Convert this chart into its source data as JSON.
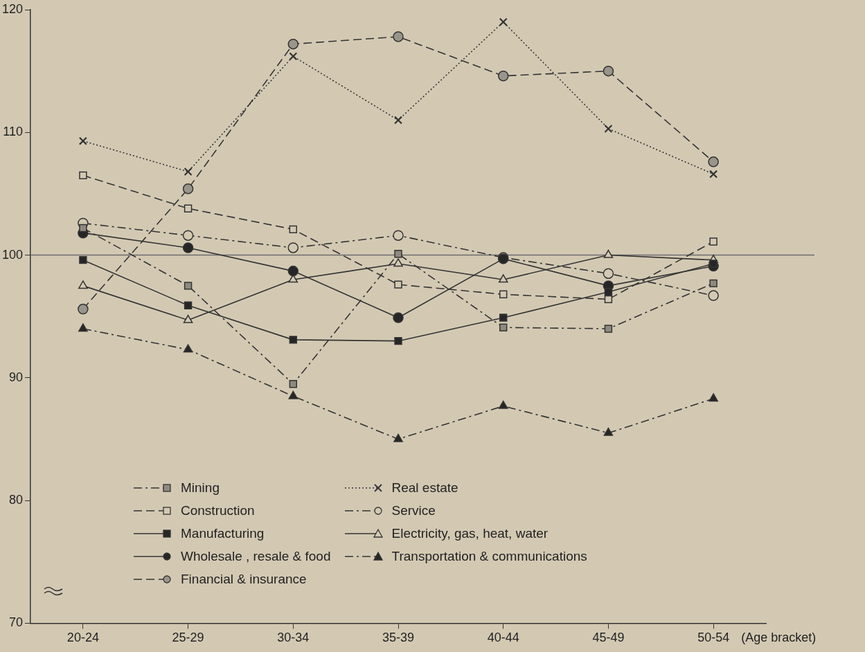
{
  "chart_data": {
    "type": "line",
    "xlabel": "(Age bracket)",
    "categories": [
      "20-24",
      "25-29",
      "30-34",
      "35-39",
      "40-44",
      "45-49",
      "50-54"
    ],
    "ylim": [
      70,
      120
    ],
    "yticks": [
      70,
      80,
      90,
      100,
      110,
      120
    ],
    "grid": false,
    "legend": "bottom left",
    "ref_lines": [
      {
        "axis": "y",
        "value": 100,
        "color": "#6b6b6b"
      }
    ],
    "series": [
      {
        "name": "Mining",
        "color": "#333333",
        "marker": "square",
        "line_style": "dashdot",
        "values": [
          102.2,
          97.5,
          89.5,
          100.1,
          94.1,
          94.0,
          97.7
        ]
      },
      {
        "name": "Construction",
        "color": "#333333",
        "marker": "square",
        "line_style": "dashed",
        "values": [
          106.5,
          103.8,
          102.1,
          97.6,
          96.8,
          96.4,
          101.1
        ]
      },
      {
        "name": "Manufacturing",
        "color": "#333333",
        "marker": "square",
        "line_style": "solid",
        "values": [
          99.6,
          95.9,
          93.1,
          93.0,
          94.9,
          97.0,
          99.3
        ]
      },
      {
        "name": "Wholesale , resale & food",
        "color": "#333333",
        "marker": "circle",
        "line_style": "solid",
        "values": [
          101.8,
          100.6,
          98.7,
          94.9,
          99.7,
          97.5,
          99.1
        ]
      },
      {
        "name": "Financial & insurance",
        "color": "#333333",
        "marker": "circle",
        "line_style": "dashed",
        "values": [
          95.6,
          105.4,
          117.2,
          117.8,
          114.6,
          115.0,
          107.6
        ]
      },
      {
        "name": "Real estate",
        "color": "#333333",
        "marker": "cross",
        "line_style": "dotted",
        "values": [
          109.3,
          106.8,
          116.2,
          111.0,
          119.0,
          110.3,
          106.6
        ]
      },
      {
        "name": "Service",
        "color": "#333333",
        "marker": "circle",
        "line_style": "dashdot",
        "values": [
          102.6,
          101.6,
          100.6,
          101.6,
          99.8,
          98.5,
          96.7
        ]
      },
      {
        "name": "Electricity, gas, heat, water",
        "color": "#333333",
        "marker": "triangle",
        "line_style": "solid",
        "values": [
          97.5,
          94.7,
          98.0,
          99.3,
          98.0,
          100.0,
          99.6
        ]
      },
      {
        "name": "Transportation & communications",
        "color": "#333333",
        "marker": "triangle",
        "line_style": "dashdot",
        "values": [
          94.0,
          92.3,
          88.5,
          85.0,
          87.7,
          85.5,
          88.3
        ]
      }
    ]
  }
}
